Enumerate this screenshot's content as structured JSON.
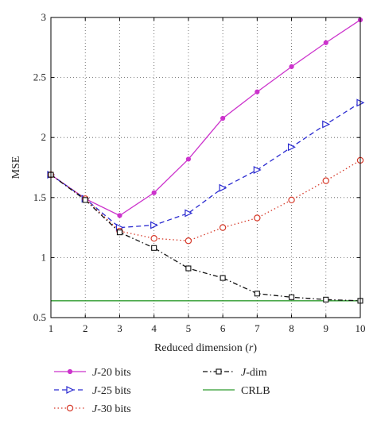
{
  "chart_data": {
    "type": "line",
    "xlabel_main": "Reduced dimension (",
    "xlabel_var": "r",
    "xlabel_close": ")",
    "ylabel": "MSE",
    "xlim": [
      1,
      10
    ],
    "ylim": [
      0.5,
      3
    ],
    "x": [
      1,
      2,
      3,
      4,
      5,
      6,
      7,
      8,
      9,
      10
    ],
    "xticks": [
      "1",
      "2",
      "3",
      "4",
      "5",
      "6",
      "7",
      "8",
      "9",
      "10"
    ],
    "yticks": [
      "0.5",
      "1",
      "1.5",
      "2",
      "2.5",
      "3"
    ],
    "ytick_values": [
      0.5,
      1,
      1.5,
      2,
      2.5,
      3
    ],
    "grid": true,
    "legend_position": "bottom-outside",
    "series": [
      {
        "key": "j20",
        "name_var": "J",
        "name_rest": "-20 bits",
        "color": "#cc33cc",
        "dash": "solid",
        "marker": "star",
        "values": [
          1.69,
          1.49,
          1.35,
          1.54,
          1.82,
          2.16,
          2.38,
          2.59,
          2.79,
          2.98
        ]
      },
      {
        "key": "j25",
        "name_var": "J",
        "name_rest": "-25 bits",
        "color": "#2b2bd0",
        "dash": "dashed",
        "marker": "triangle",
        "values": [
          1.69,
          1.49,
          1.25,
          1.27,
          1.37,
          1.58,
          1.73,
          1.92,
          2.11,
          2.29
        ]
      },
      {
        "key": "j30",
        "name_var": "J",
        "name_rest": "-30 bits",
        "color": "#d63a2a",
        "dash": "dotted",
        "marker": "circle",
        "values": [
          1.69,
          1.49,
          1.22,
          1.16,
          1.14,
          1.25,
          1.33,
          1.48,
          1.64,
          1.81
        ]
      },
      {
        "key": "jdim",
        "name_var": "J",
        "name_rest": "-dim",
        "color": "#111111",
        "dash": "dashdot",
        "marker": "square",
        "values": [
          1.69,
          1.48,
          1.21,
          1.08,
          0.91,
          0.83,
          0.7,
          0.67,
          0.65,
          0.64
        ]
      },
      {
        "key": "crlb",
        "name_var": "",
        "name_rest": "CRLB",
        "color": "#2e9b2e",
        "dash": "solid",
        "marker": "none",
        "values": [
          0.64,
          0.64,
          0.64,
          0.64,
          0.64,
          0.64,
          0.64,
          0.64,
          0.64,
          0.64
        ]
      }
    ]
  }
}
